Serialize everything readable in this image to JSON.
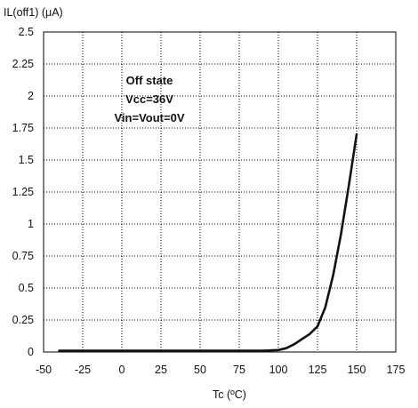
{
  "chart_data": {
    "type": "line",
    "title": "",
    "xlabel": "Tc (ºC)",
    "ylabel": "IL(off1) (μA)",
    "xlim": [
      -50,
      175
    ],
    "ylim": [
      0,
      2.5
    ],
    "x_ticks": [
      "-50",
      "-25",
      "0",
      "25",
      "50",
      "75",
      "100",
      "125",
      "150",
      "175"
    ],
    "y_ticks": [
      "0",
      "0.25",
      "0.5",
      "0.75",
      "1",
      "1.25",
      "1.5",
      "1.75",
      "2",
      "2.25",
      "2.5"
    ],
    "grid": true,
    "grid_style": "dotted",
    "annotation": [
      "Off state",
      "Vcc=36V",
      "Vin=Vout=0V"
    ],
    "series": [
      {
        "color": "#111111",
        "x": [
          -40,
          -25,
          0,
          25,
          50,
          75,
          90,
          100,
          105,
          110,
          115,
          120,
          125,
          130,
          135,
          140,
          145,
          150
        ],
        "y": [
          0.01,
          0.01,
          0.01,
          0.01,
          0.01,
          0.01,
          0.01,
          0.015,
          0.03,
          0.06,
          0.1,
          0.14,
          0.2,
          0.35,
          0.6,
          0.92,
          1.3,
          1.7
        ]
      }
    ]
  }
}
